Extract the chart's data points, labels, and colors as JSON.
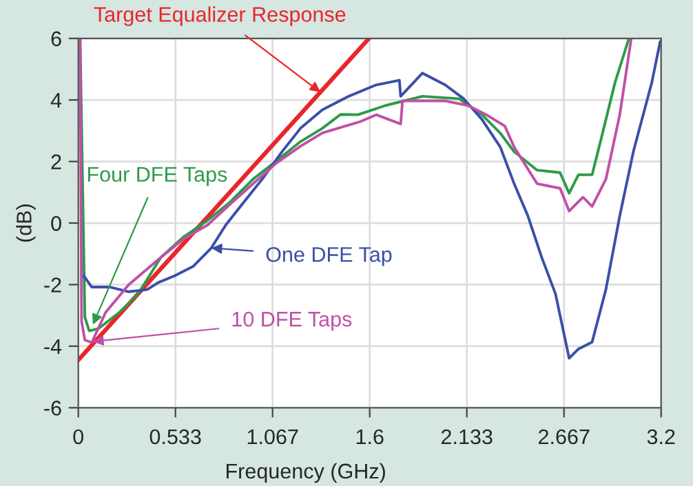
{
  "chart_data": {
    "type": "line",
    "xlabel": "Frequency (GHz)",
    "ylabel": "(dB)",
    "series": [
      {
        "color": "#e8262b",
        "x": [
          0,
          1.596
        ],
        "values": [
          -4.45,
          6.0
        ]
      },
      {
        "color": "#2e9a48",
        "x": [
          0.01,
          0.036,
          0.06,
          0.11,
          0.226,
          0.327,
          0.454,
          0.58,
          0.71,
          0.835,
          0.96,
          1.09,
          1.216,
          1.34,
          1.44,
          1.536,
          1.687,
          1.889,
          2.09,
          2.216,
          2.317,
          2.393,
          2.519,
          2.645,
          2.695,
          2.746,
          2.821,
          2.872,
          2.947,
          3.023
        ],
        "values": [
          6.0,
          -3.06,
          -3.5,
          -3.43,
          -2.9,
          -2.31,
          -1.11,
          -0.44,
          0.09,
          0.69,
          1.43,
          2.03,
          2.63,
          3.08,
          3.53,
          3.52,
          3.82,
          4.12,
          4.04,
          3.52,
          2.92,
          2.32,
          1.72,
          1.64,
          0.97,
          1.57,
          1.57,
          2.77,
          4.57,
          6.0
        ]
      },
      {
        "color": "#3a4fa8",
        "x": [
          0.03,
          0.074,
          0.175,
          0.277,
          0.378,
          0.44,
          0.53,
          0.63,
          0.73,
          0.81,
          0.91,
          1.01,
          1.12,
          1.22,
          1.34,
          1.485,
          1.636,
          1.763,
          1.77,
          1.889,
          2.014,
          2.116,
          2.216,
          2.317,
          2.393,
          2.468,
          2.544,
          2.62,
          2.695,
          2.746,
          2.821,
          2.897,
          2.973,
          3.048,
          3.149,
          3.195
        ],
        "values": [
          -1.71,
          -2.08,
          -2.08,
          -2.23,
          -2.16,
          -1.93,
          -1.71,
          -1.41,
          -0.81,
          -0.06,
          0.69,
          1.43,
          2.33,
          3.08,
          3.68,
          4.12,
          4.49,
          4.64,
          4.12,
          4.87,
          4.49,
          4.04,
          3.37,
          2.47,
          1.28,
          0.24,
          -1.11,
          -2.3,
          -4.39,
          -4.09,
          -3.87,
          -2.15,
          0.24,
          2.33,
          4.57,
          5.9
        ]
      },
      {
        "color": "#c050a8",
        "x": [
          0.01,
          0.018,
          0.036,
          0.074,
          0.15,
          0.277,
          0.454,
          0.58,
          0.71,
          0.835,
          0.96,
          1.09,
          1.216,
          1.34,
          1.55,
          1.636,
          1.77,
          1.78,
          2.014,
          2.14,
          2.24,
          2.342,
          2.393,
          2.519,
          2.645,
          2.695,
          2.771,
          2.821,
          2.897,
          2.973,
          3.036
        ],
        "values": [
          6.0,
          -3.2,
          -3.8,
          -3.88,
          -2.9,
          -2.0,
          -1.11,
          -0.51,
          -0.06,
          0.62,
          1.28,
          1.96,
          2.48,
          2.93,
          3.3,
          3.52,
          3.22,
          3.97,
          3.97,
          3.82,
          3.52,
          3.15,
          2.47,
          1.28,
          1.13,
          0.39,
          0.84,
          0.54,
          1.43,
          3.52,
          6.0
        ]
      }
    ],
    "annotations": [
      {
        "text": "Target Equalizer Response",
        "x": 1.33,
        "y": 4.25
      },
      {
        "text": "Four DFE Taps",
        "x": 0.08,
        "y": -3.3
      },
      {
        "text": "One DFE Tap",
        "x": 0.73,
        "y": -0.81
      },
      {
        "text": "10 DFE Taps",
        "x": 0.08,
        "y": -3.85
      }
    ],
    "xlim": [
      0,
      3.2
    ],
    "ylim": [
      -6,
      6
    ],
    "xticks": [
      0,
      {
        "value": 0.5333,
        "label": "0.533"
      },
      {
        "value": 1.0667,
        "label": "1.067"
      },
      1.6,
      {
        "value": 2.1333,
        "label": "2.133"
      },
      {
        "value": 2.6667,
        "label": "2.667"
      },
      3.2
    ],
    "yticks": [
      -6,
      -4,
      -2,
      0,
      2,
      4,
      6
    ],
    "grid": true,
    "marker": "none",
    "line_style": "solid"
  }
}
